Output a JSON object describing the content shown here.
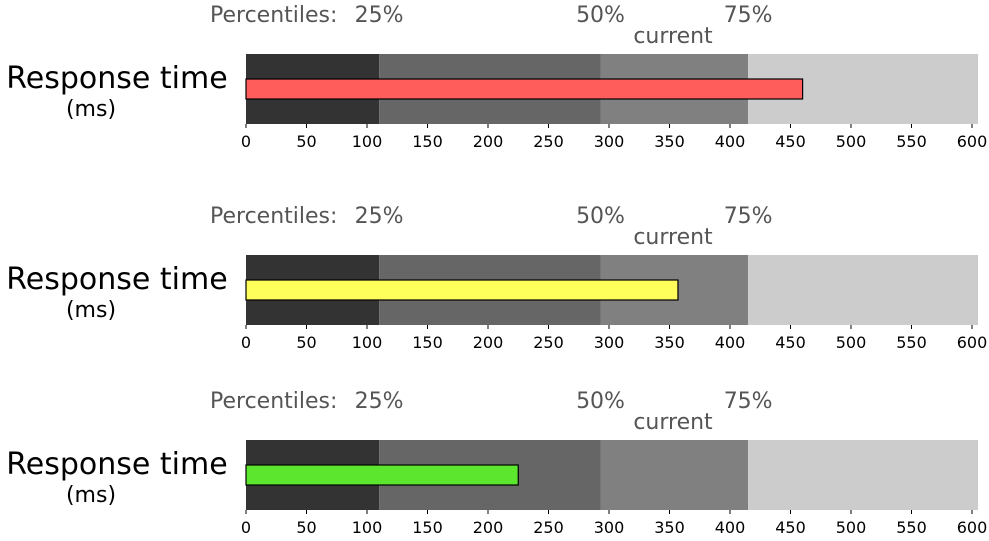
{
  "chart_data": [
    {
      "type": "bullet",
      "ylabel": "Response time",
      "ylabel_unit": "(ms)",
      "xlim": [
        0,
        600
      ],
      "xticks": [
        0,
        50,
        100,
        150,
        200,
        250,
        300,
        350,
        400,
        450,
        500,
        550,
        600
      ],
      "ranges": [
        110,
        293,
        415,
        605
      ],
      "range_colors": [
        "#333333",
        "#666666",
        "#808080",
        "#cccccc"
      ],
      "percentile_prefix": "Percentiles:",
      "percentile_labels": [
        "25%",
        "50%",
        "75%"
      ],
      "current_label": "current",
      "value": 460,
      "bar_color": "#ff5c5c"
    },
    {
      "type": "bullet",
      "ylabel": "Response time",
      "ylabel_unit": "(ms)",
      "xlim": [
        0,
        600
      ],
      "xticks": [
        0,
        50,
        100,
        150,
        200,
        250,
        300,
        350,
        400,
        450,
        500,
        550,
        600
      ],
      "ranges": [
        110,
        293,
        415,
        605
      ],
      "range_colors": [
        "#333333",
        "#666666",
        "#808080",
        "#cccccc"
      ],
      "percentile_prefix": "Percentiles:",
      "percentile_labels": [
        "25%",
        "50%",
        "75%"
      ],
      "current_label": "current",
      "value": 357,
      "bar_color": "#ffff5c"
    },
    {
      "type": "bullet",
      "ylabel": "Response time",
      "ylabel_unit": "(ms)",
      "xlim": [
        0,
        600
      ],
      "xticks": [
        0,
        50,
        100,
        150,
        200,
        250,
        300,
        350,
        400,
        450,
        500,
        550,
        600
      ],
      "ranges": [
        110,
        293,
        415,
        605
      ],
      "range_colors": [
        "#333333",
        "#666666",
        "#808080",
        "#cccccc"
      ],
      "percentile_prefix": "Percentiles:",
      "percentile_labels": [
        "25%",
        "50%",
        "75%"
      ],
      "current_label": "current",
      "value": 225,
      "bar_color": "#5ce62e"
    }
  ]
}
